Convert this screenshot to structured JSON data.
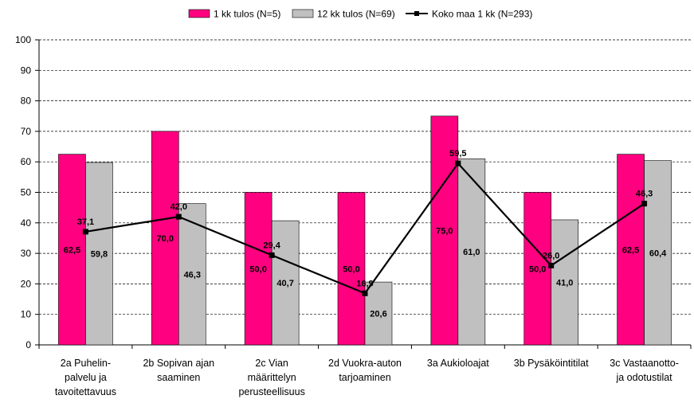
{
  "chart_data": {
    "type": "bar",
    "categories": [
      [
        "2a Puhelin-",
        "palvelu ja",
        "tavoitettavuus"
      ],
      [
        "2b Sopivan ajan",
        "saaminen"
      ],
      [
        "2c Vian",
        "määrittelyn",
        "perusteellisuus"
      ],
      [
        "2d Vuokra-auton",
        "tarjoaminen"
      ],
      [
        "3a Aukioloajat"
      ],
      [
        "3b Pysäköintitilat"
      ],
      [
        "3c Vastaanotto-",
        "ja odotustilat"
      ]
    ],
    "series": [
      {
        "name": "1 kk tulos (N=5)",
        "kind": "bar",
        "color": "#ff0080",
        "values": [
          62.5,
          70.0,
          50.0,
          50.0,
          75.0,
          50.0,
          62.5
        ],
        "labels": [
          "62,5",
          "70,0",
          "50,0",
          "50,0",
          "75,0",
          "50,0",
          "62,5"
        ]
      },
      {
        "name": "12 kk tulos (N=69)",
        "kind": "bar",
        "color": "#c0c0c0",
        "values": [
          59.8,
          46.3,
          40.7,
          20.6,
          61.0,
          41.0,
          60.4
        ],
        "labels": [
          "59,8",
          "46,3",
          "40,7",
          "20,6",
          "61,0",
          "41,0",
          "60,4"
        ]
      },
      {
        "name": "Koko maa 1 kk (N=293)",
        "kind": "line",
        "color": "#000000",
        "values": [
          37.1,
          42.0,
          29.4,
          16.9,
          59.5,
          26.0,
          46.3
        ],
        "labels": [
          "37,1",
          "42,0",
          "29,4",
          "16,9",
          "59,5",
          "26,0",
          "46,3"
        ]
      }
    ],
    "yticks": [
      "0",
      "10",
      "20",
      "30",
      "40",
      "50",
      "60",
      "70",
      "80",
      "90",
      "100"
    ],
    "ylim": [
      0,
      100
    ],
    "grid": true,
    "legend": "top-center"
  }
}
